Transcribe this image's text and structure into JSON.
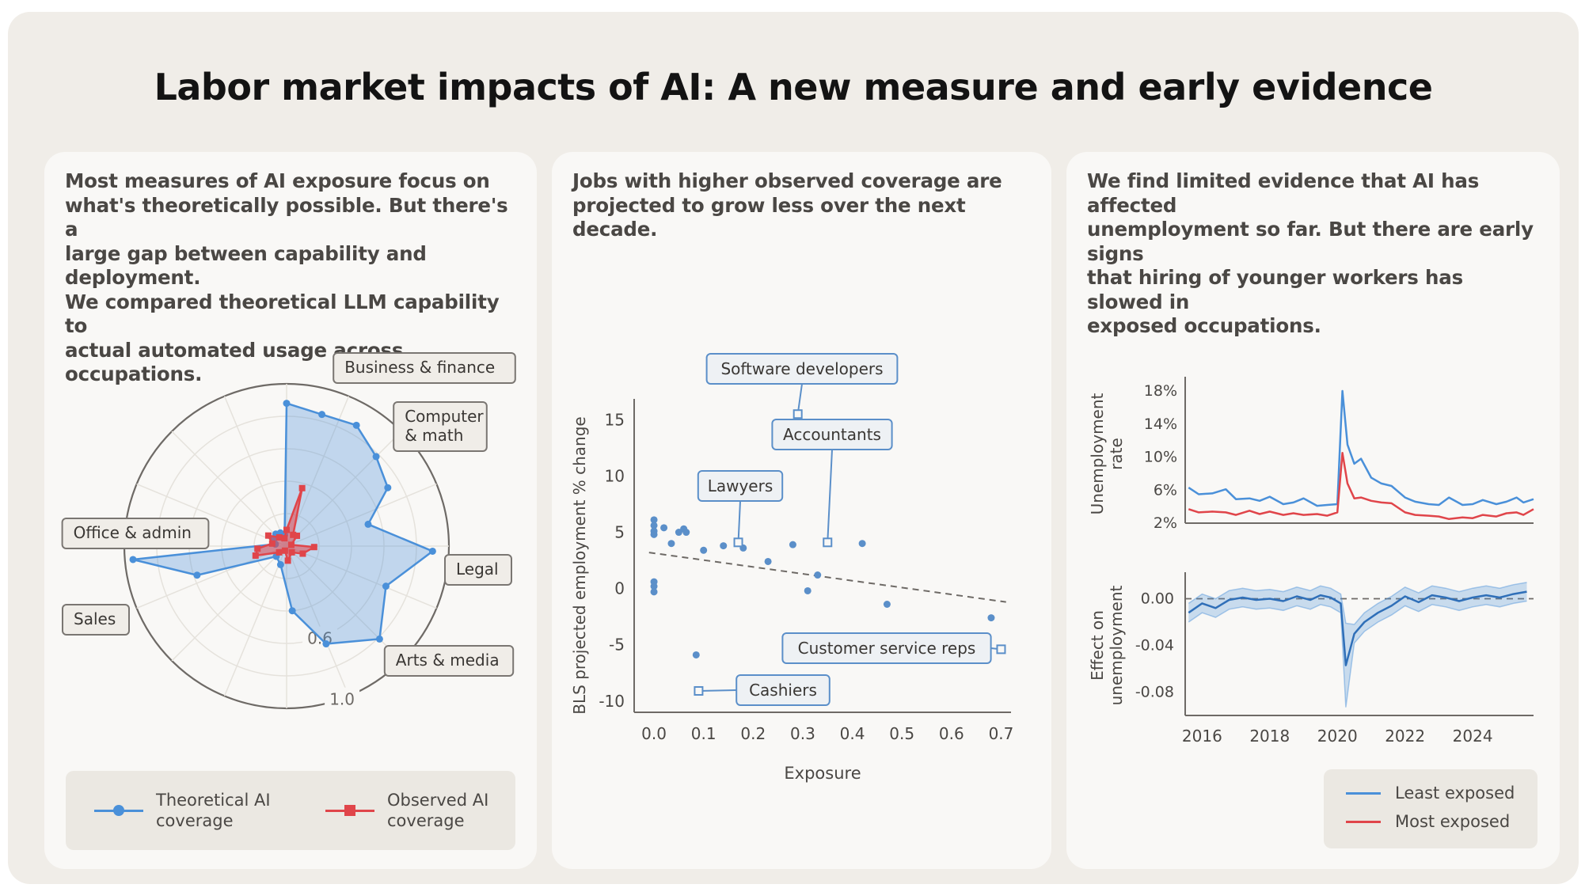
{
  "title": "Labor market impacts of AI: A new measure and early evidence",
  "colors": {
    "theoretical": "#4a90d9",
    "observed": "#e0454a",
    "least_exposed": "#4a90d9",
    "most_exposed": "#e0454a",
    "scatter": "#5b8fc9"
  },
  "panels": [
    {
      "text": "Most measures of AI exposure focus on\nwhat's theoretically possible. But there's a\nlarge gap between capability and deployment.\nWe compared theoretical LLM capability to\nactual automated usage across occupations."
    },
    {
      "text": "Jobs with higher observed coverage are\nprojected to grow less over the next decade."
    },
    {
      "text": "We find limited evidence that AI has affected\nunemployment so far. But there are early signs\nthat hiring of younger workers has slowed in\nexposed occupations."
    }
  ],
  "chart_data": [
    {
      "type": "radar",
      "radial_ticks": [
        "0.6",
        "1.0"
      ],
      "category_labels": [
        {
          "text": "Business & finance",
          "angle_deg": 8
        },
        {
          "text": "Computer\n& math",
          "angle_deg": 35
        },
        {
          "text": "Legal",
          "angle_deg": 95
        },
        {
          "text": "Arts & media",
          "angle_deg": 140
        },
        {
          "text": "Sales",
          "angle_deg": 240
        },
        {
          "text": "Office & admin",
          "angle_deg": 285
        }
      ],
      "series": [
        {
          "name": "Theoretical AI\ncoverage",
          "points": [
            [
              0,
              0.88
            ],
            [
              15,
              0.84
            ],
            [
              30,
              0.86
            ],
            [
              45,
              0.78
            ],
            [
              60,
              0.72
            ],
            [
              75,
              0.52
            ],
            [
              92,
              0.9
            ],
            [
              112,
              0.66
            ],
            [
              135,
              0.81
            ],
            [
              158,
              0.65
            ],
            [
              175,
              0.4
            ],
            [
              198,
              0.12
            ],
            [
              225,
              0.09
            ],
            [
              252,
              0.58
            ],
            [
              265,
              0.95
            ],
            [
              280,
              0.07
            ],
            [
              300,
              0.09
            ],
            [
              318,
              0.1
            ],
            [
              335,
              0.09
            ],
            [
              350,
              0.07
            ]
          ]
        },
        {
          "name": "Observed AI\ncoverage",
          "points": [
            [
              0,
              0.1
            ],
            [
              15,
              0.37
            ],
            [
              30,
              0.08
            ],
            [
              45,
              0.09
            ],
            [
              75,
              0.03
            ],
            [
              92,
              0.17
            ],
            [
              115,
              0.11
            ],
            [
              140,
              0.05
            ],
            [
              175,
              0.09
            ],
            [
              200,
              0.03
            ],
            [
              230,
              0.06
            ],
            [
              253,
              0.2
            ],
            [
              265,
              0.18
            ],
            [
              280,
              0.09
            ],
            [
              300,
              0.13
            ],
            [
              320,
              0.07
            ],
            [
              345,
              0.05
            ]
          ]
        }
      ]
    },
    {
      "type": "scatter",
      "xlabel": "Exposure",
      "ylabel": "BLS projected employment % change",
      "xlim": [
        -0.04,
        0.72
      ],
      "ylim": [
        -11,
        16.5
      ],
      "xticks": [
        "0.0",
        "0.1",
        "0.2",
        "0.3",
        "0.4",
        "0.5",
        "0.6",
        "0.7"
      ],
      "yticks": [
        "15",
        "10",
        "5",
        "0",
        "-5",
        "-10"
      ],
      "points": [
        [
          0.0,
          6.1
        ],
        [
          0.0,
          5.6
        ],
        [
          0.0,
          5.1
        ],
        [
          0.0,
          4.8
        ],
        [
          0.02,
          5.4
        ],
        [
          0.035,
          4.0
        ],
        [
          0.05,
          5.0
        ],
        [
          0.06,
          5.3
        ],
        [
          0.065,
          5.0
        ],
        [
          0.0,
          0.6
        ],
        [
          0.0,
          0.2
        ],
        [
          0.0,
          -0.3
        ],
        [
          0.1,
          3.4
        ],
        [
          0.14,
          3.8
        ],
        [
          0.18,
          3.6
        ],
        [
          0.23,
          2.4
        ],
        [
          0.28,
          3.9
        ],
        [
          0.31,
          -0.2
        ],
        [
          0.33,
          1.2
        ],
        [
          0.42,
          4.0
        ],
        [
          0.47,
          -1.4
        ],
        [
          0.68,
          -2.6
        ],
        [
          0.085,
          -5.9
        ]
      ],
      "trend": [
        [
          -0.01,
          3.2
        ],
        [
          0.71,
          -1.2
        ]
      ],
      "highlighted": [
        {
          "label": "Software developers",
          "x": 0.29,
          "y": 15.5
        },
        {
          "label": "Accountants",
          "x": 0.35,
          "y": 4.1
        },
        {
          "label": "Lawyers",
          "x": 0.17,
          "y": 4.1
        },
        {
          "label": "Customer service reps",
          "x": 0.7,
          "y": -5.4
        },
        {
          "label": "Cashiers",
          "x": 0.09,
          "y": -9.1
        }
      ]
    },
    {
      "type": "line",
      "ylabel": "Unemployment\nrate",
      "yticks": [
        "18%",
        "14%",
        "10%",
        "6%",
        "2%"
      ],
      "ylim": [
        2,
        18
      ],
      "xlim": [
        2015.5,
        2025.8
      ],
      "series": [
        {
          "name": "Least exposed",
          "x": [
            2015.6,
            2015.9,
            2016.3,
            2016.7,
            2017.0,
            2017.4,
            2017.7,
            2018.0,
            2018.4,
            2018.7,
            2019.0,
            2019.4,
            2019.7,
            2020.0,
            2020.15,
            2020.3,
            2020.5,
            2020.7,
            2021.0,
            2021.3,
            2021.6,
            2022.0,
            2022.3,
            2022.7,
            2023.0,
            2023.3,
            2023.7,
            2024.0,
            2024.3,
            2024.7,
            2025.0,
            2025.3,
            2025.5,
            2025.8
          ],
          "values": [
            6.3,
            5.5,
            5.6,
            6.1,
            4.9,
            5.0,
            4.7,
            5.2,
            4.3,
            4.5,
            5.0,
            4.1,
            4.2,
            4.3,
            18.0,
            11.5,
            9.2,
            9.8,
            7.5,
            6.8,
            6.5,
            5.1,
            4.6,
            4.3,
            4.2,
            5.1,
            4.2,
            4.3,
            4.8,
            4.3,
            4.6,
            5.1,
            4.5,
            4.9
          ]
        },
        {
          "name": "Most exposed",
          "x": [
            2015.6,
            2015.9,
            2016.3,
            2016.7,
            2017.0,
            2017.4,
            2017.7,
            2018.0,
            2018.4,
            2018.7,
            2019.0,
            2019.4,
            2019.7,
            2020.0,
            2020.15,
            2020.3,
            2020.5,
            2020.7,
            2021.0,
            2021.3,
            2021.6,
            2022.0,
            2022.3,
            2022.7,
            2023.0,
            2023.3,
            2023.7,
            2024.0,
            2024.3,
            2024.7,
            2025.0,
            2025.3,
            2025.5,
            2025.8
          ],
          "values": [
            3.7,
            3.3,
            3.4,
            3.3,
            3.0,
            3.5,
            3.1,
            3.4,
            3.0,
            3.2,
            3.0,
            3.1,
            2.9,
            3.3,
            10.5,
            6.8,
            5.0,
            5.1,
            4.7,
            4.5,
            4.4,
            3.3,
            3.0,
            2.9,
            2.8,
            2.5,
            2.7,
            2.6,
            3.0,
            2.8,
            3.2,
            3.3,
            3.0,
            3.7
          ]
        }
      ]
    },
    {
      "type": "line",
      "ylabel": "Effect on\nunemployment",
      "yticks": [
        "0.00",
        "-0.04",
        "-0.08"
      ],
      "ylim": [
        -0.1,
        0.02
      ],
      "xlim": [
        2015.5,
        2025.8
      ],
      "xticks": [
        "2016",
        "2018",
        "2020",
        "2022",
        "2024"
      ],
      "zero_line": true,
      "series": [
        {
          "name": "Least exposed",
          "x": [
            2015.6,
            2016.0,
            2016.4,
            2016.8,
            2017.2,
            2017.6,
            2018.0,
            2018.4,
            2018.8,
            2019.2,
            2019.5,
            2019.8,
            2020.1,
            2020.25,
            2020.5,
            2020.8,
            2021.2,
            2021.6,
            2022.0,
            2022.4,
            2022.8,
            2023.2,
            2023.6,
            2024.0,
            2024.4,
            2024.8,
            2025.2,
            2025.6
          ],
          "values": [
            -0.012,
            -0.004,
            -0.008,
            -0.001,
            0.001,
            -0.001,
            0.0,
            -0.002,
            0.002,
            -0.001,
            0.003,
            0.001,
            -0.004,
            -0.057,
            -0.03,
            -0.02,
            -0.012,
            -0.006,
            0.002,
            -0.003,
            0.003,
            0.001,
            -0.002,
            0.001,
            0.003,
            0.001,
            0.004,
            0.006
          ],
          "band": 0.008
        }
      ]
    }
  ],
  "legends": {
    "panel1": [
      {
        "label": "Theoretical AI\ncoverage",
        "marker": "dot"
      },
      {
        "label": "Observed AI\ncoverage",
        "marker": "square"
      }
    ],
    "panel3": [
      {
        "label": "Least exposed"
      },
      {
        "label": "Most exposed"
      }
    ]
  }
}
